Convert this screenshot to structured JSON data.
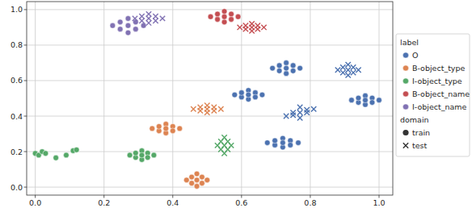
{
  "chart_data": {
    "type": "scatter",
    "xlim": [
      -0.025,
      1.04
    ],
    "ylim": [
      -0.045,
      1.045
    ],
    "xticks": [
      {
        "value": 0,
        "label": "0.0"
      },
      {
        "value": 0.2,
        "label": "0.2"
      },
      {
        "value": 0.4,
        "label": "0.4"
      },
      {
        "value": 0.6,
        "label": "0.6"
      },
      {
        "value": 0.8,
        "label": "0.8"
      },
      {
        "value": 1,
        "label": "1.0"
      }
    ],
    "yticks": [
      {
        "value": 0,
        "label": "0.0"
      },
      {
        "value": 0.2,
        "label": "0.2"
      },
      {
        "value": 0.4,
        "label": "0.4"
      },
      {
        "value": 0.6,
        "label": "0.6"
      },
      {
        "value": 0.8,
        "label": "0.8"
      },
      {
        "value": 1,
        "label": "1.0"
      }
    ],
    "grid": true,
    "legend": "right",
    "legend_titles": [
      "label",
      "domain"
    ],
    "series": [
      {
        "name": "O",
        "domain": "train",
        "color": "#4c72b0",
        "marker": "circle",
        "x": [
          0.69,
          0.77,
          0.73,
          0.73,
          0.71,
          0.75,
          0.71,
          0.75,
          0.73,
          0.58,
          0.66,
          0.62,
          0.62,
          0.6,
          0.64,
          0.6,
          0.64,
          0.62,
          0.92,
          1.0,
          0.96,
          0.96,
          0.94,
          0.98,
          0.94,
          0.98,
          0.96,
          0.675,
          0.765,
          0.72,
          0.72,
          0.697,
          0.742,
          0.697,
          0.742,
          0.72
        ],
        "values": [
          0.67,
          0.67,
          0.64,
          0.7,
          0.655,
          0.685,
          0.685,
          0.655,
          0.67,
          0.52,
          0.52,
          0.495,
          0.545,
          0.507,
          0.532,
          0.532,
          0.507,
          0.52,
          0.49,
          0.49,
          0.465,
          0.515,
          0.477,
          0.502,
          0.502,
          0.477,
          0.49,
          0.25,
          0.25,
          0.225,
          0.275,
          0.237,
          0.262,
          0.262,
          0.237,
          0.25
        ]
      },
      {
        "name": "O",
        "domain": "test",
        "color": "#4c72b0",
        "marker": "x",
        "x": [
          0.88,
          0.94,
          0.91,
          0.91,
          0.895,
          0.925,
          0.895,
          0.925,
          0.91,
          0.73,
          0.81,
          0.77,
          0.77,
          0.75,
          0.79,
          0.75,
          0.79,
          0.77
        ],
        "values": [
          0.66,
          0.66,
          0.63,
          0.69,
          0.645,
          0.675,
          0.675,
          0.645,
          0.66,
          0.4,
          0.44,
          0.39,
          0.45,
          0.405,
          0.435,
          0.42,
          0.42,
          0.42
        ]
      },
      {
        "name": "B-object_type",
        "domain": "train",
        "color": "#dd8452",
        "marker": "circle",
        "x": [
          0.34,
          0.42,
          0.38,
          0.38,
          0.36,
          0.4,
          0.36,
          0.4,
          0.38,
          0.44,
          0.5,
          0.47,
          0.47,
          0.455,
          0.485,
          0.455,
          0.485,
          0.47
        ],
        "values": [
          0.33,
          0.33,
          0.305,
          0.355,
          0.317,
          0.342,
          0.342,
          0.317,
          0.33,
          0.04,
          0.04,
          0.005,
          0.075,
          0.022,
          0.057,
          0.057,
          0.022,
          0.04
        ]
      },
      {
        "name": "B-object_type",
        "domain": "test",
        "color": "#dd8452",
        "marker": "x",
        "x": [
          0.46,
          0.54,
          0.5,
          0.5,
          0.48,
          0.52,
          0.48,
          0.52,
          0.5
        ],
        "values": [
          0.44,
          0.44,
          0.42,
          0.46,
          0.43,
          0.45,
          0.45,
          0.43,
          0.44
        ]
      },
      {
        "name": "I-object_type",
        "domain": "train",
        "color": "#55a868",
        "marker": "circle",
        "x": [
          0.0,
          0.01,
          0.02,
          0.03,
          0.06,
          0.09,
          0.11,
          0.12,
          0.275,
          0.345,
          0.31,
          0.31,
          0.292,
          0.327,
          0.292,
          0.327,
          0.31
        ],
        "values": [
          0.19,
          0.18,
          0.2,
          0.19,
          0.165,
          0.18,
          0.205,
          0.21,
          0.18,
          0.18,
          0.155,
          0.205,
          0.167,
          0.192,
          0.192,
          0.167,
          0.18
        ]
      },
      {
        "name": "I-object_type",
        "domain": "test",
        "color": "#55a868",
        "marker": "x",
        "x": [
          0.53,
          0.57,
          0.55,
          0.55,
          0.54,
          0.56,
          0.54,
          0.56,
          0.55
        ],
        "values": [
          0.235,
          0.235,
          0.19,
          0.28,
          0.212,
          0.257,
          0.257,
          0.212,
          0.235
        ]
      },
      {
        "name": "B-object_name",
        "domain": "train",
        "color": "#c44e52",
        "marker": "circle",
        "x": [
          0.51,
          0.59,
          0.55,
          0.55,
          0.53,
          0.57,
          0.53,
          0.57,
          0.55
        ],
        "values": [
          0.96,
          0.96,
          0.93,
          0.99,
          0.945,
          0.975,
          0.975,
          0.945,
          0.96
        ]
      },
      {
        "name": "B-object_name",
        "domain": "test",
        "color": "#c44e52",
        "marker": "x",
        "x": [
          0.595,
          0.665,
          0.63,
          0.63,
          0.612,
          0.647,
          0.612,
          0.647,
          0.63
        ],
        "values": [
          0.9,
          0.9,
          0.88,
          0.92,
          0.89,
          0.91,
          0.91,
          0.89,
          0.9
        ]
      },
      {
        "name": "I-object_name",
        "domain": "train",
        "color": "#8172b3",
        "marker": "circle",
        "x": [
          0.225,
          0.315,
          0.27,
          0.27,
          0.247,
          0.292,
          0.247,
          0.292,
          0.27
        ],
        "values": [
          0.91,
          0.91,
          0.87,
          0.95,
          0.89,
          0.93,
          0.93,
          0.89,
          0.91
        ]
      },
      {
        "name": "I-object_name",
        "domain": "test",
        "color": "#8172b3",
        "marker": "x",
        "x": [
          0.29,
          0.37,
          0.33,
          0.33,
          0.31,
          0.35,
          0.31,
          0.35,
          0.33
        ],
        "values": [
          0.95,
          0.95,
          0.925,
          0.975,
          0.937,
          0.962,
          0.962,
          0.937,
          0.95
        ]
      }
    ]
  }
}
